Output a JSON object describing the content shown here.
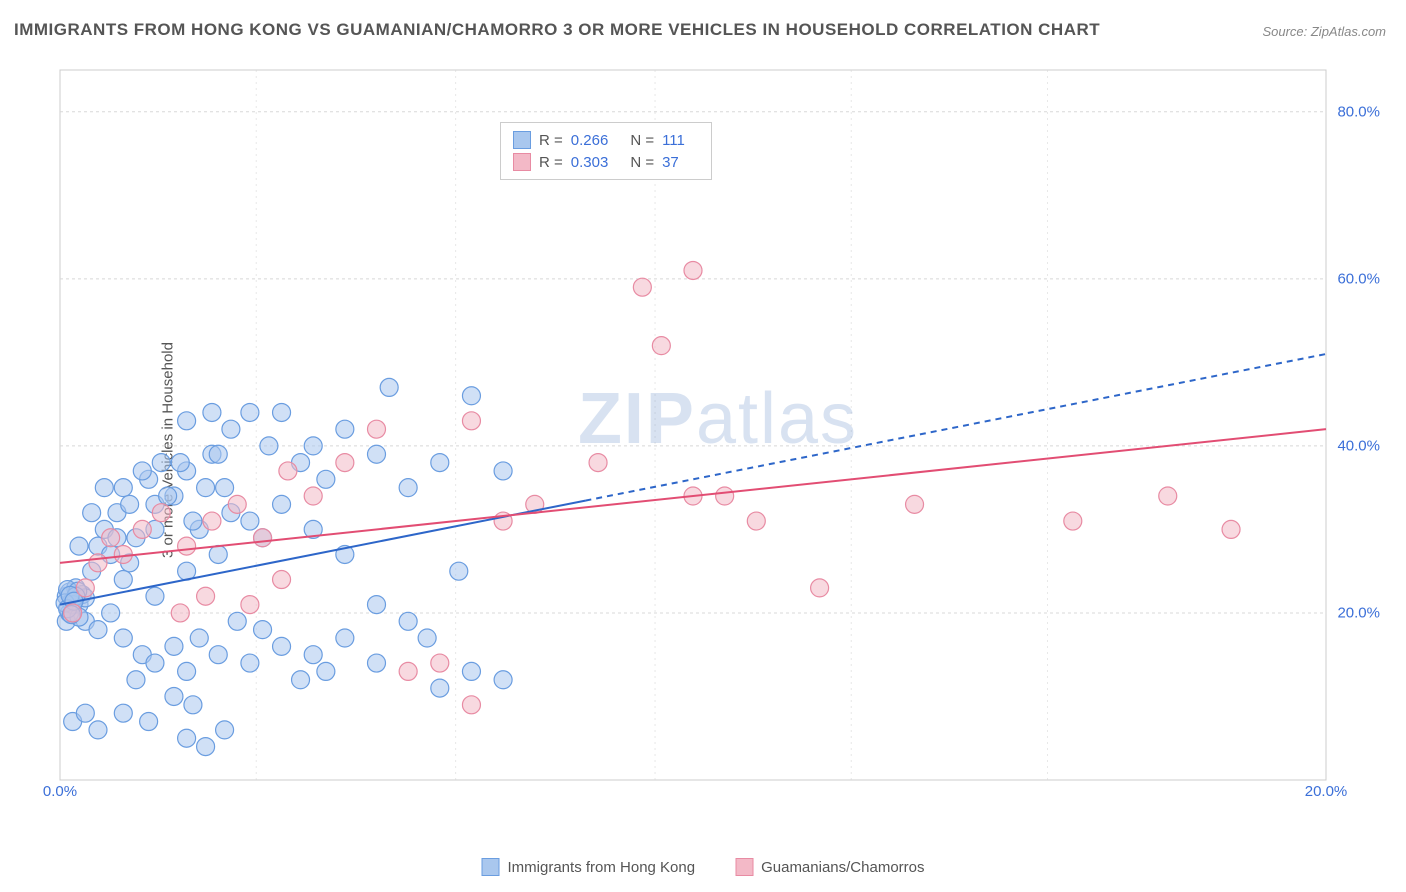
{
  "title": "IMMIGRANTS FROM HONG KONG VS GUAMANIAN/CHAMORRO 3 OR MORE VEHICLES IN HOUSEHOLD CORRELATION CHART",
  "source": "Source: ZipAtlas.com",
  "watermark_a": "ZIP",
  "watermark_b": "atlas",
  "y_label": "3 or more Vehicles in Household",
  "chart": {
    "type": "scatter",
    "x_range": [
      0,
      20
    ],
    "y_range": [
      0,
      85
    ],
    "x_ticks": [
      0,
      20
    ],
    "x_tick_labels": [
      "0.0%",
      "20.0%"
    ],
    "y_ticks": [
      20,
      40,
      60,
      80
    ],
    "y_tick_labels": [
      "20.0%",
      "40.0%",
      "60.0%",
      "80.0%"
    ],
    "grid_color": "#d8d8d8",
    "axis_color": "#cccccc",
    "vgrid_x": [
      3.1,
      6.25,
      9.4,
      12.5,
      15.6
    ],
    "background": "#ffffff",
    "series": [
      {
        "name": "Immigrants from Hong Kong",
        "fill": "#a9c7ee",
        "stroke": "#6a9de0",
        "fill_opacity": 0.55,
        "marker_r": 9,
        "R": "0.266",
        "N": "111",
        "trend": {
          "solid_to_x": 8.3,
          "x1": 0,
          "y1": 21,
          "x2": 20,
          "y2": 51,
          "stroke": "#2d66c9",
          "width": 2
        },
        "points": [
          [
            0.1,
            22
          ],
          [
            0.2,
            21.5
          ],
          [
            0.15,
            22.5
          ],
          [
            0.3,
            21
          ],
          [
            0.25,
            23
          ],
          [
            0.35,
            22.2
          ],
          [
            0.4,
            21.8
          ],
          [
            0.12,
            22.8
          ],
          [
            0.18,
            21.3
          ],
          [
            0.28,
            22.6
          ],
          [
            0.5,
            25
          ],
          [
            0.6,
            28
          ],
          [
            0.7,
            30
          ],
          [
            0.4,
            19
          ],
          [
            0.8,
            27
          ],
          [
            0.9,
            32
          ],
          [
            1.0,
            35
          ],
          [
            1.1,
            26
          ],
          [
            1.2,
            29
          ],
          [
            0.6,
            18
          ],
          [
            1.4,
            36
          ],
          [
            1.5,
            33
          ],
          [
            1.6,
            38
          ],
          [
            1.8,
            34
          ],
          [
            2.0,
            37
          ],
          [
            2.2,
            30
          ],
          [
            2.4,
            39
          ],
          [
            2.6,
            35
          ],
          [
            1.0,
            17
          ],
          [
            1.3,
            15
          ],
          [
            0.8,
            20
          ],
          [
            1.0,
            24
          ],
          [
            1.5,
            22
          ],
          [
            2.0,
            25
          ],
          [
            2.5,
            27
          ],
          [
            3.0,
            31
          ],
          [
            3.2,
            29
          ],
          [
            3.5,
            33
          ],
          [
            3.8,
            38
          ],
          [
            4.0,
            40
          ],
          [
            4.2,
            36
          ],
          [
            4.5,
            42
          ],
          [
            5.0,
            39
          ],
          [
            5.2,
            47
          ],
          [
            5.5,
            35
          ],
          [
            6.0,
            38
          ],
          [
            6.5,
            46
          ],
          [
            7.0,
            37
          ],
          [
            1.2,
            12
          ],
          [
            1.5,
            14
          ],
          [
            1.8,
            16
          ],
          [
            2.0,
            13
          ],
          [
            2.2,
            17
          ],
          [
            2.5,
            15
          ],
          [
            2.8,
            19
          ],
          [
            3.0,
            14
          ],
          [
            3.2,
            18
          ],
          [
            3.5,
            16
          ],
          [
            3.8,
            12
          ],
          [
            4.0,
            15
          ],
          [
            4.2,
            13
          ],
          [
            4.5,
            17
          ],
          [
            5.0,
            14
          ],
          [
            5.5,
            19
          ],
          [
            6.0,
            11
          ],
          [
            6.5,
            13
          ],
          [
            7.0,
            12
          ],
          [
            0.3,
            28
          ],
          [
            0.5,
            32
          ],
          [
            0.7,
            35
          ],
          [
            0.9,
            29
          ],
          [
            1.1,
            33
          ],
          [
            1.3,
            37
          ],
          [
            1.5,
            30
          ],
          [
            1.7,
            34
          ],
          [
            1.9,
            38
          ],
          [
            2.1,
            31
          ],
          [
            2.3,
            35
          ],
          [
            2.5,
            39
          ],
          [
            2.7,
            32
          ],
          [
            0.2,
            7
          ],
          [
            0.4,
            8
          ],
          [
            0.6,
            6
          ],
          [
            2.0,
            5
          ],
          [
            2.3,
            4
          ],
          [
            2.6,
            6
          ],
          [
            1.0,
            8
          ],
          [
            1.4,
            7
          ],
          [
            1.8,
            10
          ],
          [
            2.1,
            9
          ],
          [
            0.1,
            19
          ],
          [
            0.15,
            20
          ],
          [
            0.2,
            21
          ],
          [
            0.25,
            22
          ],
          [
            0.3,
            19.5
          ],
          [
            0.08,
            21.2
          ],
          [
            0.12,
            20.5
          ],
          [
            0.16,
            22.1
          ],
          [
            0.22,
            21.4
          ],
          [
            0.18,
            19.8
          ],
          [
            3.5,
            44
          ],
          [
            4.0,
            30
          ],
          [
            4.5,
            27
          ],
          [
            5.0,
            21
          ],
          [
            5.8,
            17
          ],
          [
            6.3,
            25
          ],
          [
            3.0,
            44
          ],
          [
            3.3,
            40
          ],
          [
            2.7,
            42
          ],
          [
            2.4,
            44
          ],
          [
            2.0,
            43
          ]
        ]
      },
      {
        "name": "Guamanians/Chamorros",
        "fill": "#f3b9c7",
        "stroke": "#e88ba3",
        "fill_opacity": 0.55,
        "marker_r": 9,
        "R": "0.303",
        "N": "37",
        "trend": {
          "solid_to_x": 20,
          "x1": 0,
          "y1": 26,
          "x2": 20,
          "y2": 42,
          "stroke": "#e24d73",
          "width": 2
        },
        "points": [
          [
            0.2,
            20
          ],
          [
            0.4,
            23
          ],
          [
            0.6,
            26
          ],
          [
            0.8,
            29
          ],
          [
            1.0,
            27
          ],
          [
            1.3,
            30
          ],
          [
            1.6,
            32
          ],
          [
            2.0,
            28
          ],
          [
            2.4,
            31
          ],
          [
            2.8,
            33
          ],
          [
            3.2,
            29
          ],
          [
            3.6,
            37
          ],
          [
            4.0,
            34
          ],
          [
            4.5,
            38
          ],
          [
            5.0,
            42
          ],
          [
            5.5,
            13
          ],
          [
            6.0,
            14
          ],
          [
            6.5,
            9
          ],
          [
            7.0,
            31
          ],
          [
            7.5,
            33
          ],
          [
            8.5,
            38
          ],
          [
            9.5,
            52
          ],
          [
            10.0,
            61
          ],
          [
            10.5,
            34
          ],
          [
            11.0,
            31
          ],
          [
            12.0,
            23
          ],
          [
            13.5,
            33
          ],
          [
            10.0,
            34
          ],
          [
            9.2,
            59
          ],
          [
            6.5,
            43
          ],
          [
            3.0,
            21
          ],
          [
            3.5,
            24
          ],
          [
            1.9,
            20
          ],
          [
            2.3,
            22
          ],
          [
            17.5,
            34
          ],
          [
            18.5,
            30
          ],
          [
            16.0,
            31
          ]
        ]
      }
    ]
  },
  "legend_bottom": [
    {
      "label": "Immigrants from Hong Kong",
      "fill": "#a9c7ee",
      "stroke": "#6a9de0"
    },
    {
      "label": "Guamanians/Chamorros",
      "fill": "#f3b9c7",
      "stroke": "#e88ba3"
    }
  ]
}
